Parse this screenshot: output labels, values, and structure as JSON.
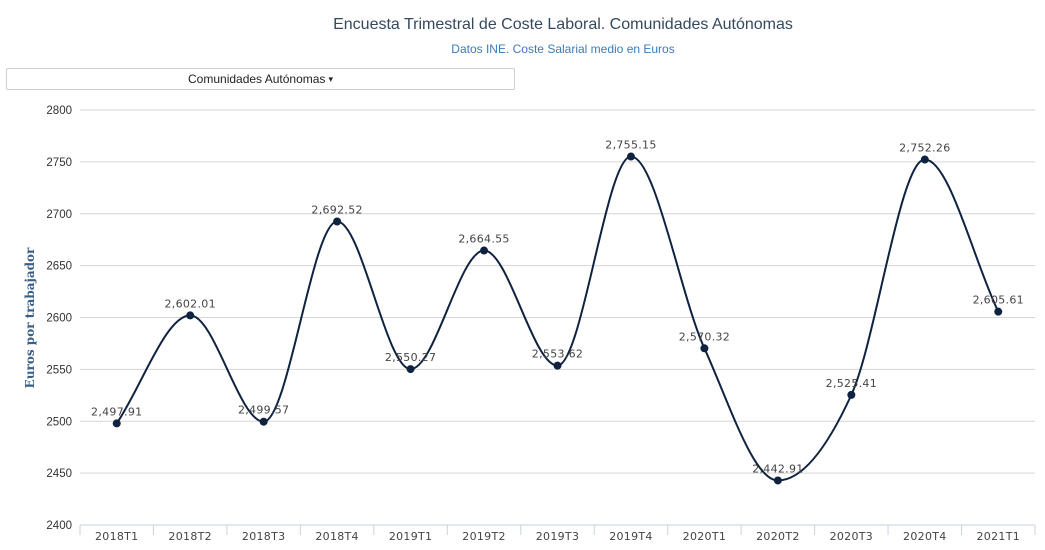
{
  "title": "Encuesta Trimestral de Coste Laboral. Comunidades Autónomas",
  "subtitle": "Datos INE. Coste Salarial medio en Euros",
  "selector": {
    "label": "Comunidades Autónomas",
    "caret": "▾"
  },
  "chart_data": {
    "type": "line",
    "smooth": true,
    "title": "Encuesta Trimestral de Coste Laboral. Comunidades Autónomas",
    "subtitle": "Datos INE. Coste Salarial medio en Euros",
    "xlabel": "",
    "ylabel": "Euros por trabajador",
    "ylim": [
      2400,
      2800
    ],
    "yticks": [
      2400,
      2450,
      2500,
      2550,
      2600,
      2650,
      2700,
      2750,
      2800
    ],
    "grid": true,
    "categories": [
      "2018T1",
      "2018T2",
      "2018T3",
      "2018T4",
      "2019T1",
      "2019T2",
      "2019T3",
      "2019T4",
      "2020T1",
      "2020T2",
      "2020T3",
      "2020T4",
      "2021T1"
    ],
    "values": [
      2497.91,
      2602.01,
      2499.57,
      2692.52,
      2550.27,
      2664.55,
      2553.62,
      2755.15,
      2570.32,
      2442.91,
      2525.41,
      2752.26,
      2605.61
    ],
    "labels": [
      "2,497.91",
      "2,602.01",
      "2,499.57",
      "2,692.52",
      "2,550.27",
      "2,664.55",
      "2,553.62",
      "2,755.15",
      "2,570.32",
      "2,442.91",
      "2,525.41",
      "2,752.26",
      "2,605.61"
    ],
    "line_color": "#0f2340",
    "grid_color": "#d6d6d6"
  }
}
